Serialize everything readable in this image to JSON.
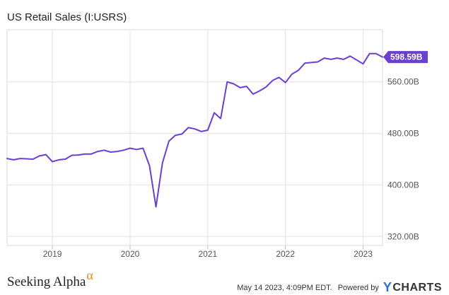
{
  "header": {
    "title": "US Retail Sales (I:USRS)"
  },
  "chart_data": {
    "type": "line",
    "title": "US Retail Sales (I:USRS)",
    "xlabel": "",
    "ylabel": "",
    "x_ticks": [
      "2019",
      "2020",
      "2021",
      "2022",
      "2023"
    ],
    "y_ticks": [
      "320.00B",
      "400.00B",
      "480.00B",
      "560.00B"
    ],
    "y_tick_values": [
      320,
      400,
      480,
      560
    ],
    "ylim": [
      306,
      641
    ],
    "xlim": [
      "2018-06",
      "2023-04"
    ],
    "y_axis_position": "right",
    "grid": true,
    "last_value_label": "598.59B",
    "line_color": "#6b3fcf",
    "series": [
      {
        "x": [
          "2018-06",
          "2018-07",
          "2018-08",
          "2018-09",
          "2018-10",
          "2018-11",
          "2018-12",
          "2019-01",
          "2019-02",
          "2019-03",
          "2019-04",
          "2019-05",
          "2019-06",
          "2019-07",
          "2019-08",
          "2019-09",
          "2019-10",
          "2019-11",
          "2019-12",
          "2020-01",
          "2020-02",
          "2020-03",
          "2020-04",
          "2020-05",
          "2020-06",
          "2020-07",
          "2020-08",
          "2020-09",
          "2020-10",
          "2020-11",
          "2020-12",
          "2021-01",
          "2021-02",
          "2021-03",
          "2021-04",
          "2021-05",
          "2021-06",
          "2021-07",
          "2021-08",
          "2021-09",
          "2021-10",
          "2021-11",
          "2021-12",
          "2022-01",
          "2022-02",
          "2022-03",
          "2022-04",
          "2022-05",
          "2022-06",
          "2022-07",
          "2022-08",
          "2022-09",
          "2022-10",
          "2022-11",
          "2022-12",
          "2023-01",
          "2023-02",
          "2023-03",
          "2023-04"
        ],
        "y": [
          441,
          439,
          441,
          440.5,
          440,
          445,
          447,
          436,
          439,
          440,
          446,
          446.5,
          448,
          448,
          452,
          454,
          451,
          452,
          454,
          457,
          455,
          457,
          430,
          366,
          434,
          468,
          477,
          479,
          489,
          487,
          483,
          485,
          512,
          503,
          560,
          557,
          551,
          553,
          541,
          546,
          552,
          562,
          567,
          559,
          572,
          578,
          589,
          590,
          591,
          597,
          595,
          597,
          595,
          600,
          594,
          588,
          604,
          604,
          598.59
        ]
      }
    ]
  },
  "footer": {
    "brand_name": "Seeking Alpha",
    "brand_mark": "α",
    "timestamp": "May 14 2023, 4:09PM EDT.",
    "powered_by": "Powered by",
    "ycharts_y": "Y",
    "ycharts_rest": "CHARTS"
  }
}
